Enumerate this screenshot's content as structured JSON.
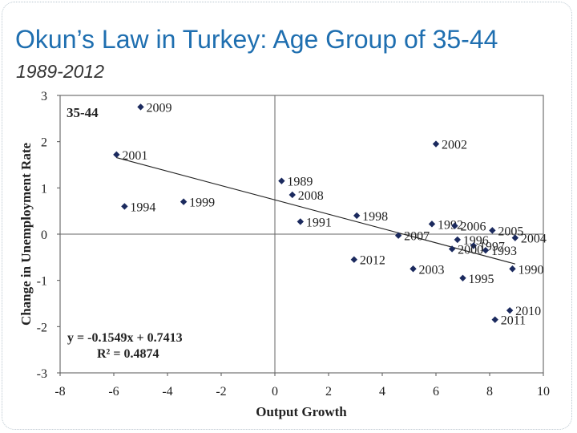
{
  "slide": {
    "title": "Okun’s Law in Turkey: Age Group of 35-44",
    "subtitle": "1989-2012"
  },
  "chart_data": {
    "type": "scatter",
    "title": "",
    "group_label": "35-44",
    "xlabel": "Output Growth",
    "ylabel": "Change in Unemployment Rate",
    "xlim": [
      -8,
      10
    ],
    "ylim": [
      -3,
      3
    ],
    "x_ticks": [
      -8,
      -6,
      -4,
      -2,
      0,
      2,
      4,
      6,
      8,
      10
    ],
    "y_ticks": [
      -3,
      -2,
      -1,
      0,
      1,
      2,
      3
    ],
    "grid": false,
    "marker_color": "#1b2a5e",
    "points": [
      {
        "label": "2009",
        "x": -5.0,
        "y": 2.75
      },
      {
        "label": "2001",
        "x": -5.9,
        "y": 1.72
      },
      {
        "label": "1994",
        "x": -5.6,
        "y": 0.6
      },
      {
        "label": "1999",
        "x": -3.4,
        "y": 0.7
      },
      {
        "label": "2002",
        "x": 6.0,
        "y": 1.95
      },
      {
        "label": "1989",
        "x": 0.25,
        "y": 1.15
      },
      {
        "label": "2008",
        "x": 0.65,
        "y": 0.85
      },
      {
        "label": "1991",
        "x": 0.95,
        "y": 0.27
      },
      {
        "label": "1998",
        "x": 3.05,
        "y": 0.4
      },
      {
        "label": "1992",
        "x": 5.85,
        "y": 0.22
      },
      {
        "label": "2006",
        "x": 6.7,
        "y": 0.18
      },
      {
        "label": "2005",
        "x": 8.1,
        "y": 0.08
      },
      {
        "label": "2004",
        "x": 8.95,
        "y": -0.08
      },
      {
        "label": "2007",
        "x": 4.6,
        "y": -0.03
      },
      {
        "label": "1996",
        "x": 6.8,
        "y": -0.12
      },
      {
        "label": "1997",
        "x": 7.4,
        "y": -0.25
      },
      {
        "label": "2000",
        "x": 6.6,
        "y": -0.32
      },
      {
        "label": "1993",
        "x": 7.85,
        "y": -0.35
      },
      {
        "label": "2012",
        "x": 2.95,
        "y": -0.55
      },
      {
        "label": "2003",
        "x": 5.15,
        "y": -0.75
      },
      {
        "label": "1995",
        "x": 7.0,
        "y": -0.95
      },
      {
        "label": "1990",
        "x": 8.85,
        "y": -0.75
      },
      {
        "label": "2010",
        "x": 8.75,
        "y": -1.65
      },
      {
        "label": "2011",
        "x": 8.2,
        "y": -1.85
      }
    ],
    "trendline": {
      "slope": -0.1549,
      "intercept": 0.7413,
      "x_range": [
        -5.9,
        8.95
      ],
      "equation": "y = -0.1549x + 0.7413",
      "r_squared": "R² = 0.4874"
    }
  }
}
